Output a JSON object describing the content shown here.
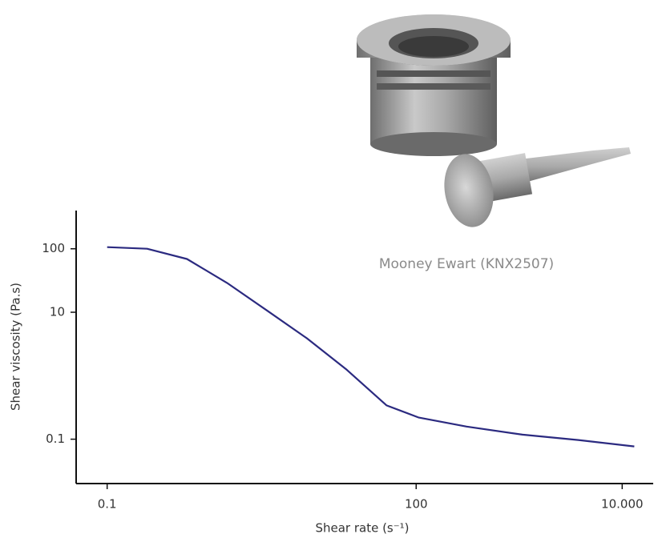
{
  "chart_data": {
    "type": "line",
    "x_label": "Shear rate (s⁻¹)",
    "y_label": "Shear viscosity (Pa.s)",
    "annotation": "Mooney Ewart (KNX2507)",
    "x_scale": "log",
    "y_scale": "log",
    "xlim": [
      0.05,
      20000
    ],
    "ylim": [
      0.02,
      400
    ],
    "xticks": [
      0.1,
      100,
      {
        "value": 10000,
        "label": "10.000"
      }
    ],
    "yticks": [
      100,
      10,
      0.1
    ],
    "grid": false,
    "x": [
      0.1,
      0.244,
      0.596,
      1.46,
      3.55,
      8.66,
      21.2,
      51.7,
      105,
      308,
      1075,
      3750,
      13100
    ],
    "series": [
      {
        "color": "#2b2a80",
        "values": [
          106,
          100,
          69,
          29,
          10.7,
          3.9,
          1.24,
          0.34,
          0.22,
          0.158,
          0.118,
          0.097,
          0.077
        ]
      }
    ]
  }
}
